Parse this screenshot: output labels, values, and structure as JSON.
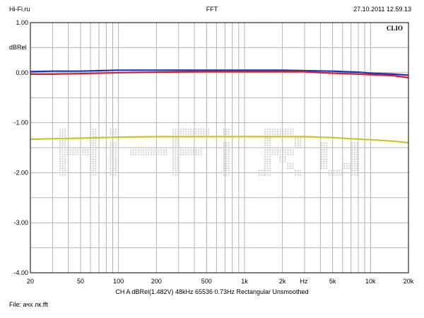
{
  "header": {
    "left": "Hi-Fi.ru",
    "center": "FFT",
    "right": "27.10.2011 12.59.13"
  },
  "brand": "CLIO",
  "watermark": "Hi-Fi.ru",
  "footer": {
    "info": "CH A   dBRel(1.482V)   48kHz   65536   0.73Hz   Rectangular   Unsmoothed",
    "file": "File: ачх лк.fft"
  },
  "colors": {
    "background": "#ffffff",
    "grid": "#b4b4b4",
    "blue": "#1f2fbf",
    "red": "#d42020",
    "yellow": "#c9c32c"
  },
  "chart_data": {
    "type": "line",
    "title": "FFT",
    "xlabel": "Hz",
    "ylabel": "dBRel",
    "x_scale": "log",
    "xlim": [
      20,
      20000
    ],
    "ylim": [
      -4.0,
      1.0
    ],
    "grid": true,
    "x_tick_labels": [
      {
        "value": 20,
        "label": "20"
      },
      {
        "value": 50,
        "label": "50"
      },
      {
        "value": 100,
        "label": "100"
      },
      {
        "value": 200,
        "label": "200"
      },
      {
        "value": 500,
        "label": "500"
      },
      {
        "value": 1000,
        "label": "1k"
      },
      {
        "value": 2000,
        "label": "2k"
      },
      {
        "value": 5000,
        "label": "5k"
      },
      {
        "value": 10000,
        "label": "10k"
      },
      {
        "value": 20000,
        "label": "20k"
      }
    ],
    "y_tick_labels": [
      {
        "value": 1.0,
        "label": "1.00"
      },
      {
        "value": 0.0,
        "label": "0.00"
      },
      {
        "value": -1.0,
        "label": "-1.00"
      },
      {
        "value": -2.0,
        "label": "-2.00"
      },
      {
        "value": -3.0,
        "label": "-3.00"
      },
      {
        "value": -4.0,
        "label": "-4.00"
      }
    ],
    "series": [
      {
        "color": "#1f2fbf",
        "points": [
          [
            20,
            0.02
          ],
          [
            30,
            0.03
          ],
          [
            50,
            0.03
          ],
          [
            100,
            0.05
          ],
          [
            200,
            0.05
          ],
          [
            300,
            0.05
          ],
          [
            500,
            0.05
          ],
          [
            1000,
            0.05
          ],
          [
            2000,
            0.05
          ],
          [
            3000,
            0.04
          ],
          [
            5000,
            0.03
          ],
          [
            8000,
            0.01
          ],
          [
            10000,
            -0.01
          ],
          [
            15000,
            -0.03
          ],
          [
            20000,
            -0.05
          ]
        ]
      },
      {
        "color": "#d42020",
        "points": [
          [
            20,
            -0.03
          ],
          [
            30,
            -0.03
          ],
          [
            50,
            -0.02
          ],
          [
            100,
            0.0
          ],
          [
            200,
            0.01
          ],
          [
            500,
            0.02
          ],
          [
            1000,
            0.02
          ],
          [
            2000,
            0.02
          ],
          [
            3000,
            0.02
          ],
          [
            4000,
            0.0
          ],
          [
            5000,
            -0.01
          ],
          [
            8000,
            -0.03
          ],
          [
            10000,
            -0.04
          ],
          [
            15000,
            -0.06
          ],
          [
            20000,
            -0.1
          ]
        ]
      },
      {
        "color": "#c9c32c",
        "points": [
          [
            20,
            -1.33
          ],
          [
            30,
            -1.32
          ],
          [
            50,
            -1.31
          ],
          [
            100,
            -1.29
          ],
          [
            200,
            -1.28
          ],
          [
            500,
            -1.28
          ],
          [
            1000,
            -1.28
          ],
          [
            2000,
            -1.28
          ],
          [
            3000,
            -1.28
          ],
          [
            4000,
            -1.29
          ],
          [
            5000,
            -1.3
          ],
          [
            7000,
            -1.32
          ],
          [
            10000,
            -1.34
          ],
          [
            15000,
            -1.37
          ],
          [
            20000,
            -1.4
          ]
        ]
      }
    ]
  }
}
